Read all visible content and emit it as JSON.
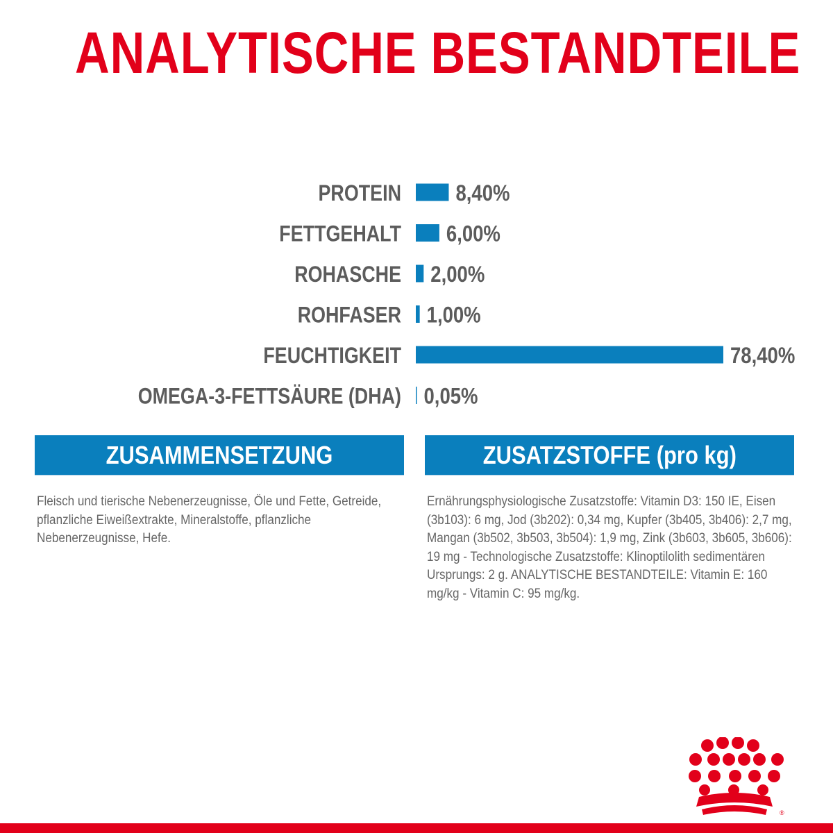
{
  "title": "ANALYTISCHE BESTANDTEILE",
  "colors": {
    "title_red": "#e2001a",
    "bar_blue": "#0a7fbd",
    "label_gray": "#5c5c5c",
    "header_blue": "#0a7fbd",
    "text_gray": "#666666"
  },
  "chart_data": {
    "type": "bar",
    "orientation": "horizontal",
    "categories": [
      "PROTEIN",
      "FETTGEHALT",
      "ROHASCHE",
      "ROHFASER",
      "FEUCHTIGKEIT",
      "OMEGA-3-FETTSÄURE (DHA)"
    ],
    "values": [
      8.4,
      6.0,
      2.0,
      1.0,
      78.4,
      0.05
    ],
    "value_labels": [
      "8,40%",
      "6,00%",
      "2,00%",
      "1,00%",
      "78,40%",
      "0,05%"
    ],
    "unit": "%",
    "title": "",
    "xlabel": "",
    "ylabel": "",
    "grid": false
  },
  "composition": {
    "header": "ZUSAMMENSETZUNG",
    "text": "Fleisch und tierische Nebenerzeugnisse, Öle und Fette, Getreide, pflanzliche Eiweißextrakte, Mineralstoffe, pflanzliche Nebenerzeugnisse, Hefe."
  },
  "additives": {
    "header": "ZUSATZSTOFFE (pro kg)",
    "text": "Ernährungsphysiologische Zusatzstoffe: Vitamin D3: 150 IE, Eisen (3b103): 6 mg, Jod (3b202): 0,34 mg, Kupfer (3b405, 3b406): 2,7 mg, Mangan (3b502, 3b503, 3b504): 1,9 mg, Zink (3b603, 3b605, 3b606): 19 mg - Technologische Zusatzstoffe: Klinoptilolith sedimentären Ursprungs: 2 g. ANALYTISCHE BESTANDTEILE: Vitamin E: 160 mg/kg - Vitamin C: 95 mg/kg."
  },
  "logo": {
    "icon": "crown-logo-icon",
    "mark": "®"
  }
}
